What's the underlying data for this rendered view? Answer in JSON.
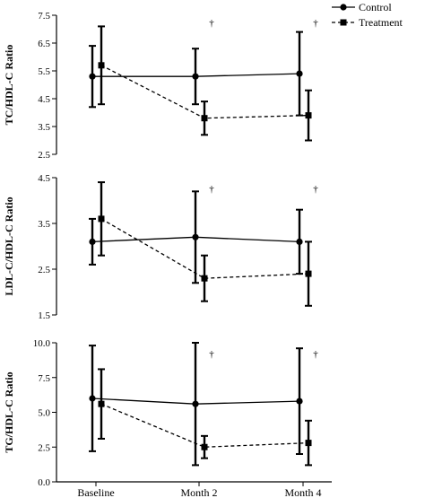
{
  "chart_data": {
    "type": "line",
    "categories": [
      "Baseline",
      "Month 2",
      "Month 4"
    ],
    "legend": {
      "placement": "top-right",
      "entries": [
        {
          "name": "Control",
          "marker": "circle",
          "line": "solid"
        },
        {
          "name": "Treatment",
          "marker": "square",
          "line": "dashed"
        }
      ]
    },
    "panels": [
      {
        "ylabel": "TC/HDL-C Ratio",
        "ylim": [
          2.5,
          7.5
        ],
        "yticks": [
          "2.5",
          "3.5",
          "4.5",
          "5.5",
          "6.5",
          "7.5"
        ],
        "series": [
          {
            "name": "Control",
            "values": [
              5.3,
              5.3,
              5.4
            ],
            "err_low": [
              4.2,
              4.3,
              3.9
            ],
            "err_high": [
              6.4,
              6.3,
              6.9
            ]
          },
          {
            "name": "Treatment",
            "values": [
              5.7,
              3.8,
              3.9
            ],
            "err_low": [
              4.3,
              3.2,
              3.0
            ],
            "err_high": [
              7.1,
              4.4,
              4.8
            ]
          }
        ],
        "annotations": [
          {
            "text": "†",
            "category": "Month 2"
          },
          {
            "text": "†",
            "category": "Month 4"
          }
        ]
      },
      {
        "ylabel": "LDL-C/HDL-C Ratio",
        "ylim": [
          1.5,
          4.5
        ],
        "yticks": [
          "1.5",
          "2.5",
          "3.5",
          "4.5"
        ],
        "series": [
          {
            "name": "Control",
            "values": [
              3.1,
              3.2,
              3.1
            ],
            "err_low": [
              2.6,
              2.2,
              2.4
            ],
            "err_high": [
              3.6,
              4.2,
              3.8
            ]
          },
          {
            "name": "Treatment",
            "values": [
              3.6,
              2.3,
              2.4
            ],
            "err_low": [
              2.8,
              1.8,
              1.7
            ],
            "err_high": [
              4.4,
              2.8,
              3.1
            ]
          }
        ],
        "annotations": [
          {
            "text": "†",
            "category": "Month 2"
          },
          {
            "text": "†",
            "category": "Month 4"
          }
        ]
      },
      {
        "ylabel": "TG/HDL-C Ratio",
        "ylim": [
          0.0,
          10.0
        ],
        "yticks": [
          "0.0",
          "2.5",
          "5.0",
          "7.5",
          "10.0"
        ],
        "series": [
          {
            "name": "Control",
            "values": [
              6.0,
              5.6,
              5.8
            ],
            "err_low": [
              2.2,
              1.2,
              2.0
            ],
            "err_high": [
              9.8,
              10.0,
              9.6
            ]
          },
          {
            "name": "Treatment",
            "values": [
              5.6,
              2.5,
              2.8
            ],
            "err_low": [
              3.1,
              1.7,
              1.2
            ],
            "err_high": [
              8.1,
              3.3,
              4.4
            ]
          }
        ],
        "annotations": [
          {
            "text": "†",
            "category": "Month 2"
          },
          {
            "text": "†",
            "category": "Month 4"
          }
        ]
      }
    ]
  }
}
